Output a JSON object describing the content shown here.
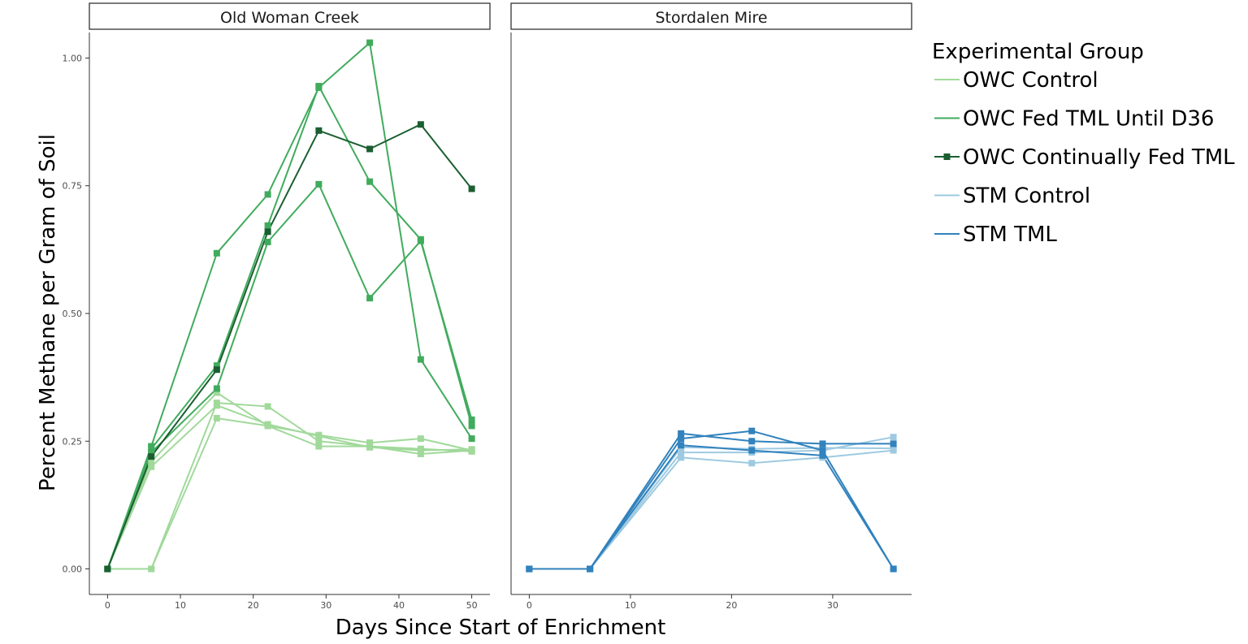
{
  "chart_data": {
    "type": "line",
    "xlabel": "Days Since Start of Enrichment",
    "ylabel": "Percent Methane per Gram of Soil",
    "ylim": [
      -0.05,
      1.05
    ],
    "y_ticks": [
      0.0,
      0.25,
      0.5,
      0.75,
      1.0
    ],
    "y_tick_labels": [
      "0.00",
      "0.25",
      "0.50",
      "0.75",
      "1.00"
    ],
    "grid": false,
    "legend": {
      "title": "Experimental Group",
      "placement": "right",
      "entries": [
        {
          "label": "OWC Control",
          "color": "#a1d99b",
          "marker": false
        },
        {
          "label": "OWC Fed TML Until D36",
          "color": "#41ab5d",
          "marker": false
        },
        {
          "label": "OWC Continually Fed TML",
          "color": "#1b5e31",
          "marker": true
        },
        {
          "label": "STM Control",
          "color": "#9ecae1",
          "marker": false
        },
        {
          "label": "STM TML",
          "color": "#3182bd",
          "marker": false
        }
      ]
    },
    "panels": [
      {
        "title": "Old Woman Creek",
        "xlim": [
          -2.5,
          52.5
        ],
        "x_ticks": [
          0,
          10,
          20,
          30,
          40,
          50
        ],
        "x_tick_labels": [
          "0",
          "10",
          "20",
          "30",
          "40",
          "50"
        ],
        "series": [
          {
            "group": "OWC Control",
            "color": "#a1d99b",
            "x": [
              0,
              6,
              15,
              22,
              29,
              36,
              43,
              50
            ],
            "y": [
              0.0,
              0.0,
              0.325,
              0.318,
              0.25,
              0.24,
              0.225,
              0.232
            ]
          },
          {
            "group": "OWC Control",
            "color": "#a1d99b",
            "x": [
              0,
              6,
              15,
              22,
              29,
              36,
              43,
              50
            ],
            "y": [
              0.0,
              0.0,
              0.295,
              0.28,
              0.24,
              0.24,
              0.235,
              0.23
            ]
          },
          {
            "group": "OWC Control",
            "color": "#a1d99b",
            "x": [
              0,
              6,
              15,
              22,
              29,
              36,
              43,
              50
            ],
            "y": [
              0.0,
              0.2,
              0.32,
              0.283,
              0.26,
              0.238,
              0.232,
              0.234
            ]
          },
          {
            "group": "OWC Control",
            "color": "#a1d99b",
            "x": [
              0,
              6,
              15,
              22,
              29,
              36,
              43,
              50
            ],
            "y": [
              0.0,
              0.21,
              0.345,
              0.28,
              0.262,
              0.247,
              0.255,
              0.232
            ]
          },
          {
            "group": "OWC Fed TML Until D36",
            "color": "#41ab5d",
            "x": [
              0,
              6,
              15,
              22,
              29,
              36,
              43,
              50
            ],
            "y": [
              0.0,
              0.24,
              0.618,
              0.733,
              0.942,
              1.03,
              0.41,
              0.255
            ]
          },
          {
            "group": "OWC Fed TML Until D36",
            "color": "#41ab5d",
            "x": [
              0,
              6,
              15,
              22,
              29,
              36,
              43,
              50
            ],
            "y": [
              0.0,
              0.235,
              0.398,
              0.672,
              0.945,
              0.758,
              0.645,
              0.28
            ]
          },
          {
            "group": "OWC Fed TML Until D36",
            "color": "#41ab5d",
            "x": [
              0,
              6,
              15,
              22,
              29,
              36,
              43,
              50
            ],
            "y": [
              0.0,
              0.228,
              0.353,
              0.64,
              0.753,
              0.53,
              0.642,
              0.292
            ]
          },
          {
            "group": "OWC Continually Fed TML",
            "color": "#1b5e31",
            "x": [
              0,
              6,
              15,
              22,
              29,
              36,
              43,
              50
            ],
            "y": [
              0.0,
              0.22,
              0.39,
              0.66,
              0.858,
              0.822,
              0.87,
              0.744
            ]
          }
        ]
      },
      {
        "title": "Stordalen Mire",
        "xlim": [
          -1.8,
          37.8
        ],
        "x_ticks": [
          0,
          10,
          20,
          30
        ],
        "x_tick_labels": [
          "0",
          "10",
          "20",
          "30"
        ],
        "series": [
          {
            "group": "STM Control",
            "color": "#9ecae1",
            "x": [
              0,
              6,
              15,
              22,
              29,
              36
            ],
            "y": [
              0.0,
              0.0,
              0.218,
              0.207,
              0.218,
              0.232
            ]
          },
          {
            "group": "STM Control",
            "color": "#9ecae1",
            "x": [
              0,
              6,
              15,
              22,
              29,
              36
            ],
            "y": [
              0.0,
              0.0,
              0.228,
              0.228,
              0.232,
              0.258
            ]
          },
          {
            "group": "STM Control",
            "color": "#9ecae1",
            "x": [
              0,
              6,
              15,
              22,
              29,
              36
            ],
            "y": [
              0.0,
              0.0,
              0.238,
              0.235,
              0.237,
              0.236
            ]
          },
          {
            "group": "STM TML",
            "color": "#3182bd",
            "x": [
              0,
              6,
              15,
              22,
              29,
              36
            ],
            "y": [
              0.0,
              0.0,
              0.265,
              0.25,
              0.245,
              0.245
            ]
          },
          {
            "group": "STM TML",
            "color": "#3182bd",
            "x": [
              0,
              6,
              15,
              22,
              29,
              36
            ],
            "y": [
              0.0,
              0.0,
              0.255,
              0.27,
              0.232,
              0.0
            ]
          },
          {
            "group": "STM TML",
            "color": "#3182bd",
            "x": [
              0,
              6,
              15,
              22,
              29,
              36
            ],
            "y": [
              0.0,
              0.0,
              0.242,
              0.232,
              0.222,
              0.0
            ]
          }
        ]
      }
    ]
  }
}
